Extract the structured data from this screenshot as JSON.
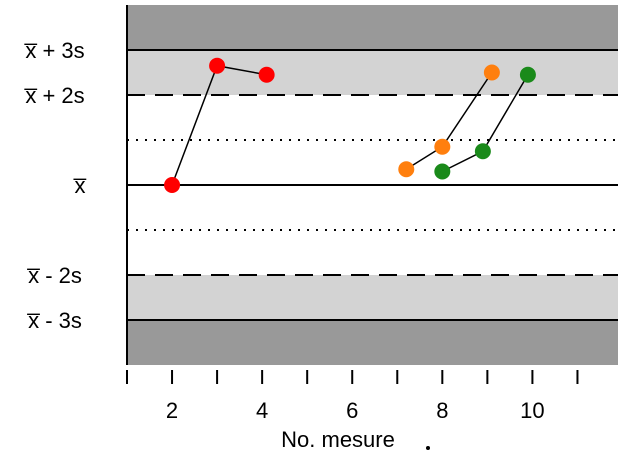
{
  "chart_data": {
    "type": "line",
    "title": "",
    "xlabel": "No. mesure",
    "ylabel": "",
    "xlim": [
      1,
      11.9
    ],
    "ylim": [
      -4,
      4
    ],
    "x_ticks": [
      2,
      4,
      6,
      8,
      10
    ],
    "x_tick_labels": [
      "2",
      "4",
      "6",
      "8",
      "10"
    ],
    "y_reference_lines": [
      {
        "label": "x̅ + 3s",
        "value": 3,
        "style": "solid"
      },
      {
        "label": "x̅ + 2s",
        "value": 2,
        "style": "dashed"
      },
      {
        "label": "",
        "value": 1,
        "style": "dotted"
      },
      {
        "label": "x̅",
        "value": 0,
        "style": "solid"
      },
      {
        "label": "",
        "value": -1,
        "style": "dotted"
      },
      {
        "label": "x̅ - 2s",
        "value": -2,
        "style": "dashed"
      },
      {
        "label": "x̅ - 3s",
        "value": -3,
        "style": "solid"
      }
    ],
    "bands": [
      {
        "from": 3,
        "to": 4,
        "color": "#999999"
      },
      {
        "from": 2,
        "to": 3,
        "color": "#d3d3d3"
      },
      {
        "from": -3,
        "to": -2,
        "color": "#d3d3d3"
      },
      {
        "from": -4,
        "to": -3,
        "color": "#999999"
      }
    ],
    "series": [
      {
        "color": "#ff0000",
        "x": [
          2,
          3,
          4.1
        ],
        "y": [
          0,
          2.65,
          2.45
        ]
      },
      {
        "color": "#ff7f0e",
        "x": [
          7.2,
          8.0,
          9.1
        ],
        "y": [
          0.35,
          0.85,
          2.5
        ]
      },
      {
        "color": "#1a8a1a",
        "x": [
          8.0,
          8.9,
          9.9
        ],
        "y": [
          0.3,
          0.75,
          2.45
        ]
      }
    ]
  }
}
